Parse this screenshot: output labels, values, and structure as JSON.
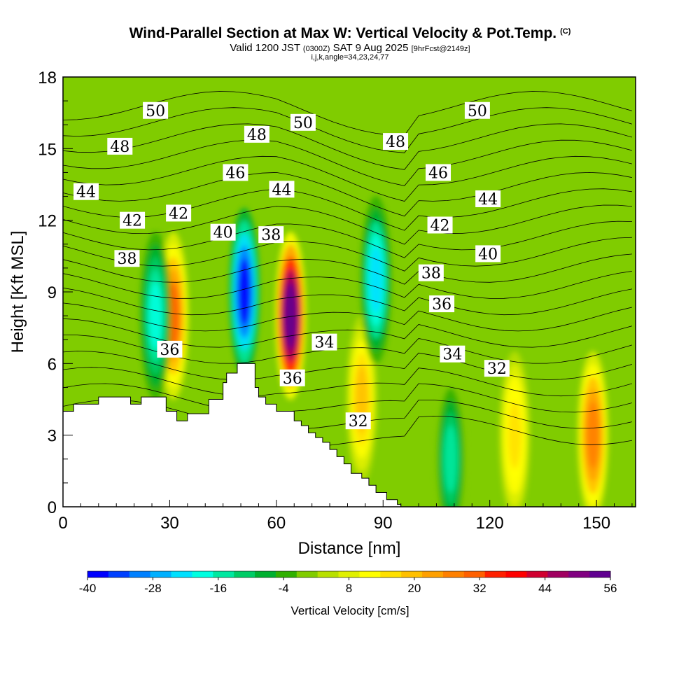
{
  "title": {
    "main": "Wind-Parallel Section at Max W: Vertical Velocity & Pot.Temp.",
    "copyright": "(C)",
    "valid_prefix": "Valid 1200 JST",
    "valid_utc": "(0300Z)",
    "valid_date": "SAT 9 Aug 2025",
    "forecast_info": "[9hrFcst@2149z]",
    "params": "i,j,k,angle=34,23,24,77"
  },
  "chart_data": {
    "type": "heatmap",
    "title": "Wind-Parallel Section at Max W: Vertical Velocity & Pot.Temp.",
    "xlabel": "Distance [nm]",
    "ylabel": "Height [Kft MSL]",
    "xlim": [
      0,
      161
    ],
    "ylim": [
      0,
      18
    ],
    "xticks": [
      0,
      30,
      60,
      90,
      120,
      150
    ],
    "yticks": [
      0,
      3,
      6,
      9,
      12,
      15,
      18
    ],
    "colorbar": {
      "label": "Vertical Velocity [cm/s]",
      "tick_labels": [
        "-40",
        "-28",
        "-16",
        "-4",
        "8",
        "20",
        "32",
        "44",
        "56"
      ],
      "colors": [
        "#0000ff",
        "#0040ff",
        "#0080ff",
        "#00b0ff",
        "#00e0ff",
        "#00ffe0",
        "#00e8a0",
        "#00cc66",
        "#00b030",
        "#30b000",
        "#80cc00",
        "#b8e000",
        "#e0f000",
        "#ffff00",
        "#ffe000",
        "#ffc000",
        "#ffa000",
        "#ff8000",
        "#ff6000",
        "#ff2000",
        "#ff0000",
        "#d00030",
        "#a00060",
        "#800080",
        "#600090"
      ]
    },
    "wmax_cm_s": 56,
    "wmin_cm_s": -40,
    "updraft_cores": [
      {
        "x_nm": 31,
        "z_kft": 8,
        "w_cm_s": 30
      },
      {
        "x_nm": 64,
        "z_kft": 8,
        "w_cm_s": 56
      },
      {
        "x_nm": 84,
        "z_kft": 4.5,
        "w_cm_s": 20
      },
      {
        "x_nm": 127,
        "z_kft": 3,
        "w_cm_s": 16
      },
      {
        "x_nm": 149,
        "z_kft": 3,
        "w_cm_s": 28
      }
    ],
    "downdraft_cores": [
      {
        "x_nm": 26,
        "z_kft": 8,
        "w_cm_s": -20
      },
      {
        "x_nm": 51,
        "z_kft": 9,
        "w_cm_s": -40
      },
      {
        "x_nm": 88,
        "z_kft": 9.5,
        "w_cm_s": -24
      },
      {
        "x_nm": 109,
        "z_kft": 2,
        "w_cm_s": -16
      }
    ],
    "contours": {
      "variable": "Potential temperature",
      "unit": "C",
      "interval": 1,
      "labels": [
        {
          "text": "50",
          "x_nm": 26,
          "z_kft": 16.6
        },
        {
          "text": "48",
          "x_nm": 16,
          "z_kft": 15.1
        },
        {
          "text": "44",
          "x_nm": 6.5,
          "z_kft": 13.2
        },
        {
          "text": "42",
          "x_nm": 19.5,
          "z_kft": 12.0
        },
        {
          "text": "42",
          "x_nm": 32.5,
          "z_kft": 12.3
        },
        {
          "text": "38",
          "x_nm": 18,
          "z_kft": 10.4
        },
        {
          "text": "46",
          "x_nm": 48.5,
          "z_kft": 14.0
        },
        {
          "text": "48",
          "x_nm": 54.5,
          "z_kft": 15.6
        },
        {
          "text": "50",
          "x_nm": 67.5,
          "z_kft": 16.1
        },
        {
          "text": "44",
          "x_nm": 61.5,
          "z_kft": 13.3
        },
        {
          "text": "40",
          "x_nm": 45,
          "z_kft": 11.5
        },
        {
          "text": "38",
          "x_nm": 58.5,
          "z_kft": 11.4
        },
        {
          "text": "36",
          "x_nm": 30,
          "z_kft": 6.6
        },
        {
          "text": "34",
          "x_nm": 73.5,
          "z_kft": 6.9
        },
        {
          "text": "36",
          "x_nm": 64.5,
          "z_kft": 5.4
        },
        {
          "text": "32",
          "x_nm": 83,
          "z_kft": 3.6
        },
        {
          "text": "50",
          "x_nm": 116.5,
          "z_kft": 16.6
        },
        {
          "text": "48",
          "x_nm": 93.5,
          "z_kft": 15.3
        },
        {
          "text": "46",
          "x_nm": 105.5,
          "z_kft": 14.0
        },
        {
          "text": "44",
          "x_nm": 119.5,
          "z_kft": 12.9
        },
        {
          "text": "42",
          "x_nm": 106,
          "z_kft": 11.8
        },
        {
          "text": "40",
          "x_nm": 119.5,
          "z_kft": 10.6
        },
        {
          "text": "38",
          "x_nm": 103.5,
          "z_kft": 9.8
        },
        {
          "text": "36",
          "x_nm": 106.5,
          "z_kft": 8.5
        },
        {
          "text": "34",
          "x_nm": 109.5,
          "z_kft": 6.4
        },
        {
          "text": "32",
          "x_nm": 122,
          "z_kft": 5.8
        }
      ]
    },
    "terrain_profile": {
      "x_nm": [
        0,
        3,
        3,
        10,
        10,
        19,
        19,
        22,
        22,
        29,
        29,
        32,
        32,
        35,
        35,
        41,
        41,
        45,
        45,
        46,
        46,
        49,
        49,
        54,
        54,
        55,
        55,
        57,
        57,
        60,
        60,
        65,
        65,
        67,
        67,
        69,
        69,
        71,
        71,
        73,
        73,
        75,
        75,
        77,
        77,
        79,
        79,
        81,
        81,
        84,
        84,
        86,
        86,
        88,
        88,
        91,
        91,
        94,
        94,
        95,
        95,
        161
      ],
      "z_kft": [
        4.0,
        4.0,
        4.3,
        4.3,
        4.6,
        4.6,
        4.3,
        4.3,
        4.6,
        4.6,
        4.0,
        4.0,
        3.6,
        3.6,
        3.9,
        3.9,
        4.5,
        4.5,
        5.2,
        5.2,
        5.6,
        5.6,
        6.0,
        6.0,
        5.0,
        5.0,
        4.6,
        4.6,
        4.3,
        4.3,
        4.0,
        4.0,
        3.6,
        3.6,
        3.4,
        3.4,
        3.1,
        3.1,
        2.9,
        2.9,
        2.7,
        2.7,
        2.4,
        2.4,
        2.1,
        2.1,
        1.8,
        1.8,
        1.4,
        1.4,
        1.2,
        1.2,
        0.9,
        0.9,
        0.6,
        0.6,
        0.3,
        0.3,
        0.1,
        0.1,
        0.0,
        0.0
      ]
    }
  }
}
